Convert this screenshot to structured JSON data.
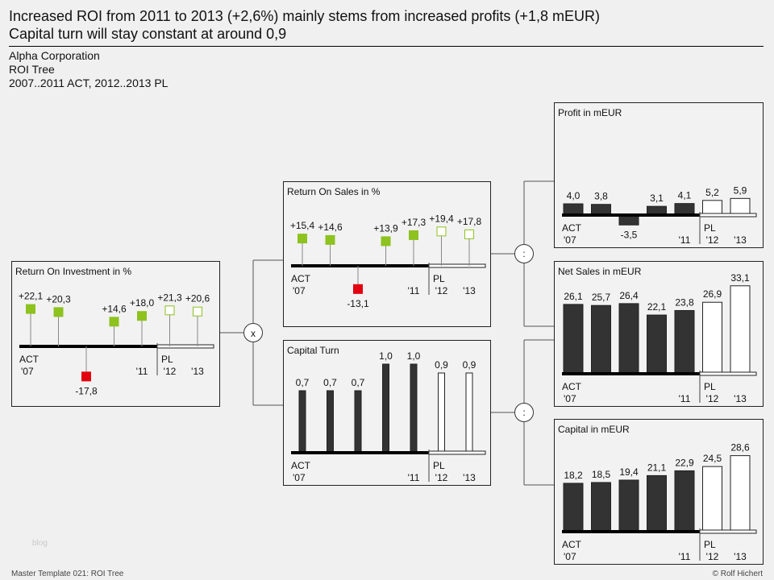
{
  "header": {
    "title_line1": "Increased ROI from 2011 to 2013 (+2,6%) mainly stems from increased profits (+1,8 mEUR)",
    "title_line2": "Capital turn will stay constant at around 0,9",
    "company": "Alpha Corporation",
    "report": "ROI Tree",
    "period": "2007..2011 ACT, 2012..2013 PL"
  },
  "operators": {
    "multiply": "x",
    "divide_top": ":",
    "divide_bottom": ":"
  },
  "footer": {
    "left": "Master Template 021: ROI Tree",
    "right": "© Rolf Hichert",
    "watermark": "blog"
  },
  "axis_labels": {
    "act": "ACT",
    "pl": "PL",
    "y07": "'07",
    "y11": "'11",
    "y12": "'12",
    "y13": "'13"
  },
  "colors": {
    "positive": "#8dc21f",
    "negative": "#e3000f",
    "actual": "#333333",
    "plan_fill": "#ffffff",
    "frame": "#222222"
  },
  "chart_data": [
    {
      "id": "roi",
      "type": "pin",
      "title": "Return On Investment in %",
      "categories": [
        "2007",
        "2008",
        "2009",
        "2010",
        "2011",
        "2012",
        "2013"
      ],
      "scenario": [
        "ACT",
        "ACT",
        "ACT",
        "ACT",
        "ACT",
        "PL",
        "PL"
      ],
      "values": [
        22.1,
        20.3,
        -17.8,
        14.6,
        18.0,
        21.3,
        20.6
      ],
      "labels": [
        "+22,1",
        "+20,3",
        "-17,8",
        "+14,6",
        "+18,0",
        "+21,3",
        "+20,6"
      ]
    },
    {
      "id": "ros",
      "type": "pin",
      "title": "Return On Sales in %",
      "categories": [
        "2007",
        "2008",
        "2009",
        "2010",
        "2011",
        "2012",
        "2013"
      ],
      "scenario": [
        "ACT",
        "ACT",
        "ACT",
        "ACT",
        "ACT",
        "PL",
        "PL"
      ],
      "values": [
        15.4,
        14.6,
        -13.1,
        13.9,
        17.3,
        19.4,
        17.8
      ],
      "labels": [
        "+15,4",
        "+14,6",
        "-13,1",
        "+13,9",
        "+17,3",
        "+19,4",
        "+17,8"
      ]
    },
    {
      "id": "ct",
      "type": "bar",
      "title": "Capital Turn",
      "categories": [
        "2007",
        "2008",
        "2009",
        "2010",
        "2011",
        "2012",
        "2013"
      ],
      "scenario": [
        "ACT",
        "ACT",
        "ACT",
        "ACT",
        "ACT",
        "PL",
        "PL"
      ],
      "values": [
        0.7,
        0.7,
        0.7,
        1.0,
        1.0,
        0.9,
        0.9
      ],
      "labels": [
        "0,7",
        "0,7",
        "0,7",
        "1,0",
        "1,0",
        "0,9",
        "0,9"
      ]
    },
    {
      "id": "profit",
      "type": "bar",
      "title": "Profit in mEUR",
      "categories": [
        "2007",
        "2008",
        "2009",
        "2010",
        "2011",
        "2012",
        "2013"
      ],
      "scenario": [
        "ACT",
        "ACT",
        "ACT",
        "ACT",
        "ACT",
        "PL",
        "PL"
      ],
      "values": [
        4.0,
        3.8,
        -3.5,
        3.1,
        4.1,
        5.2,
        5.9
      ],
      "labels": [
        "4,0",
        "3,8",
        "-3,5",
        "3,1",
        "4,1",
        "5,2",
        "5,9"
      ]
    },
    {
      "id": "sales",
      "type": "bar",
      "title": "Net Sales in mEUR",
      "categories": [
        "2007",
        "2008",
        "2009",
        "2010",
        "2011",
        "2012",
        "2013"
      ],
      "scenario": [
        "ACT",
        "ACT",
        "ACT",
        "ACT",
        "ACT",
        "PL",
        "PL"
      ],
      "values": [
        26.1,
        25.7,
        26.4,
        22.1,
        23.8,
        26.9,
        33.1
      ],
      "labels": [
        "26,1",
        "25,7",
        "26,4",
        "22,1",
        "23,8",
        "26,9",
        "33,1"
      ]
    },
    {
      "id": "capital",
      "type": "bar",
      "title": "Capital in mEUR",
      "categories": [
        "2007",
        "2008",
        "2009",
        "2010",
        "2011",
        "2012",
        "2013"
      ],
      "scenario": [
        "ACT",
        "ACT",
        "ACT",
        "ACT",
        "ACT",
        "PL",
        "PL"
      ],
      "values": [
        18.2,
        18.5,
        19.4,
        21.1,
        22.9,
        24.5,
        28.6
      ],
      "labels": [
        "18,2",
        "18,5",
        "19,4",
        "21,1",
        "22,9",
        "24,5",
        "28,6"
      ]
    }
  ]
}
